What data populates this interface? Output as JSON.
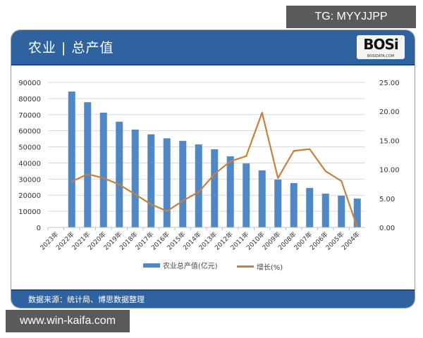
{
  "overlay": {
    "tg_label": "TG: MYYJJPP",
    "site_label": "www.win-kaifa.com"
  },
  "card": {
    "title": "农业 | 总产值",
    "logo_text": "BOSi",
    "logo_sub": "BOSIDATA.COM",
    "footer": "数据来源：统计局、博思数据整理"
  },
  "colors": {
    "header_bg": "#2e63a0",
    "bar": "#4f88c4",
    "line": "#c8803a",
    "grid": "#d9d9d9"
  },
  "chart_data": {
    "type": "bar",
    "title": "农业 | 总产值",
    "categories": [
      "2023年",
      "2022年",
      "2021年",
      "2020年",
      "2019年",
      "2018年",
      "2017年",
      "2016年",
      "2015年",
      "2014年",
      "2013年",
      "2012年",
      "2011年",
      "2010年",
      "2009年",
      "2008年",
      "2007年",
      "2006年",
      "2005年",
      "2004年"
    ],
    "series": [
      {
        "name": "农业总产值(亿元)",
        "type": "bar",
        "axis": "left",
        "values": [
          null,
          84300,
          77700,
          71200,
          65600,
          60700,
          57800,
          55300,
          53700,
          51500,
          48500,
          44100,
          39700,
          35400,
          29700,
          27500,
          24500,
          21000,
          19700,
          17900
        ]
      },
      {
        "name": "增长(%)",
        "type": "line",
        "axis": "right",
        "values": [
          null,
          7.9,
          9.2,
          8.5,
          7.4,
          5.7,
          4.0,
          2.8,
          4.6,
          6.1,
          9.2,
          11.4,
          12.3,
          19.8,
          8.5,
          13.2,
          13.5,
          9.7,
          8.0,
          0.0
        ]
      }
    ],
    "xlabel": "",
    "ylabel": "",
    "ylim": [
      0,
      90000
    ],
    "yticks": [
      "0",
      "10000",
      "20000",
      "30000",
      "40000",
      "50000",
      "60000",
      "70000",
      "80000",
      "90000"
    ],
    "y2lim": [
      0,
      25
    ],
    "y2ticks": [
      "0.00",
      "5.00",
      "10.00",
      "15.00",
      "20.00",
      "25.00"
    ],
    "grid": true,
    "legend_position": "bottom",
    "legend": [
      "农业总产值(亿元)",
      "增长(%)"
    ]
  }
}
